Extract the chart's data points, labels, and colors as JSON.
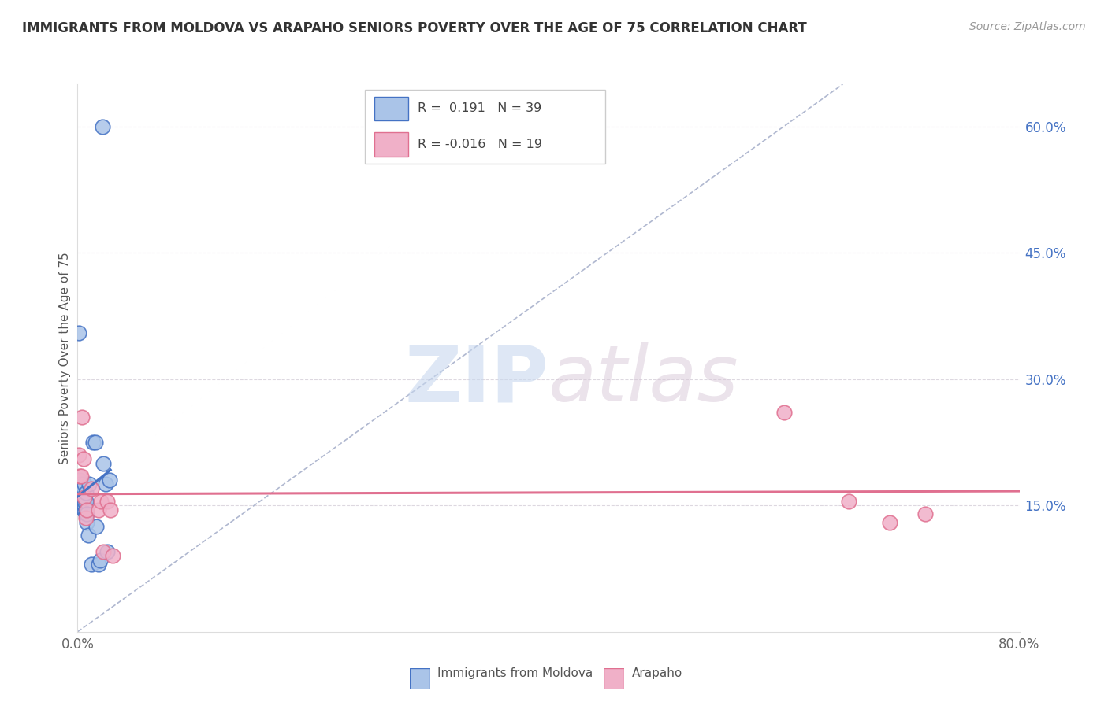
{
  "title": "IMMIGRANTS FROM MOLDOVA VS ARAPAHO SENIORS POVERTY OVER THE AGE OF 75 CORRELATION CHART",
  "source": "Source: ZipAtlas.com",
  "ylabel": "Seniors Poverty Over the Age of 75",
  "xlim": [
    0,
    0.8
  ],
  "ylim": [
    0,
    0.65
  ],
  "y_ticks_right": [
    0.15,
    0.3,
    0.45,
    0.6
  ],
  "y_tick_labels_right": [
    "15.0%",
    "30.0%",
    "45.0%",
    "60.0%"
  ],
  "R_moldova": 0.191,
  "N_moldova": 39,
  "R_arapaho": -0.016,
  "N_arapaho": 19,
  "legend_label1": "Immigrants from Moldova",
  "legend_label2": "Arapaho",
  "color_moldova": "#aac4e8",
  "color_arapaho": "#f0b0c8",
  "line_color_moldova": "#4472c4",
  "line_color_arapaho": "#e07090",
  "diag_line_color": "#b0b8d0",
  "watermark_zip": "ZIP",
  "watermark_atlas": "atlas",
  "moldova_x": [
    0.001,
    0.002,
    0.002,
    0.003,
    0.003,
    0.003,
    0.004,
    0.004,
    0.004,
    0.004,
    0.005,
    0.005,
    0.005,
    0.005,
    0.005,
    0.006,
    0.006,
    0.006,
    0.006,
    0.006,
    0.007,
    0.007,
    0.007,
    0.007,
    0.008,
    0.008,
    0.009,
    0.01,
    0.012,
    0.013,
    0.015,
    0.016,
    0.018,
    0.019,
    0.022,
    0.024,
    0.025,
    0.027,
    0.021
  ],
  "moldova_y": [
    0.355,
    0.175,
    0.18,
    0.165,
    0.17,
    0.175,
    0.155,
    0.16,
    0.165,
    0.17,
    0.145,
    0.15,
    0.155,
    0.16,
    0.17,
    0.145,
    0.15,
    0.155,
    0.16,
    0.175,
    0.14,
    0.145,
    0.155,
    0.165,
    0.13,
    0.14,
    0.115,
    0.175,
    0.08,
    0.225,
    0.225,
    0.125,
    0.08,
    0.085,
    0.2,
    0.175,
    0.095,
    0.18,
    0.6
  ],
  "arapaho_x": [
    0.001,
    0.002,
    0.003,
    0.004,
    0.005,
    0.006,
    0.007,
    0.008,
    0.012,
    0.018,
    0.02,
    0.022,
    0.025,
    0.028,
    0.03,
    0.6,
    0.655,
    0.69,
    0.72
  ],
  "arapaho_y": [
    0.21,
    0.185,
    0.185,
    0.255,
    0.205,
    0.16,
    0.135,
    0.145,
    0.17,
    0.145,
    0.155,
    0.095,
    0.155,
    0.145,
    0.09,
    0.26,
    0.155,
    0.13,
    0.14
  ]
}
